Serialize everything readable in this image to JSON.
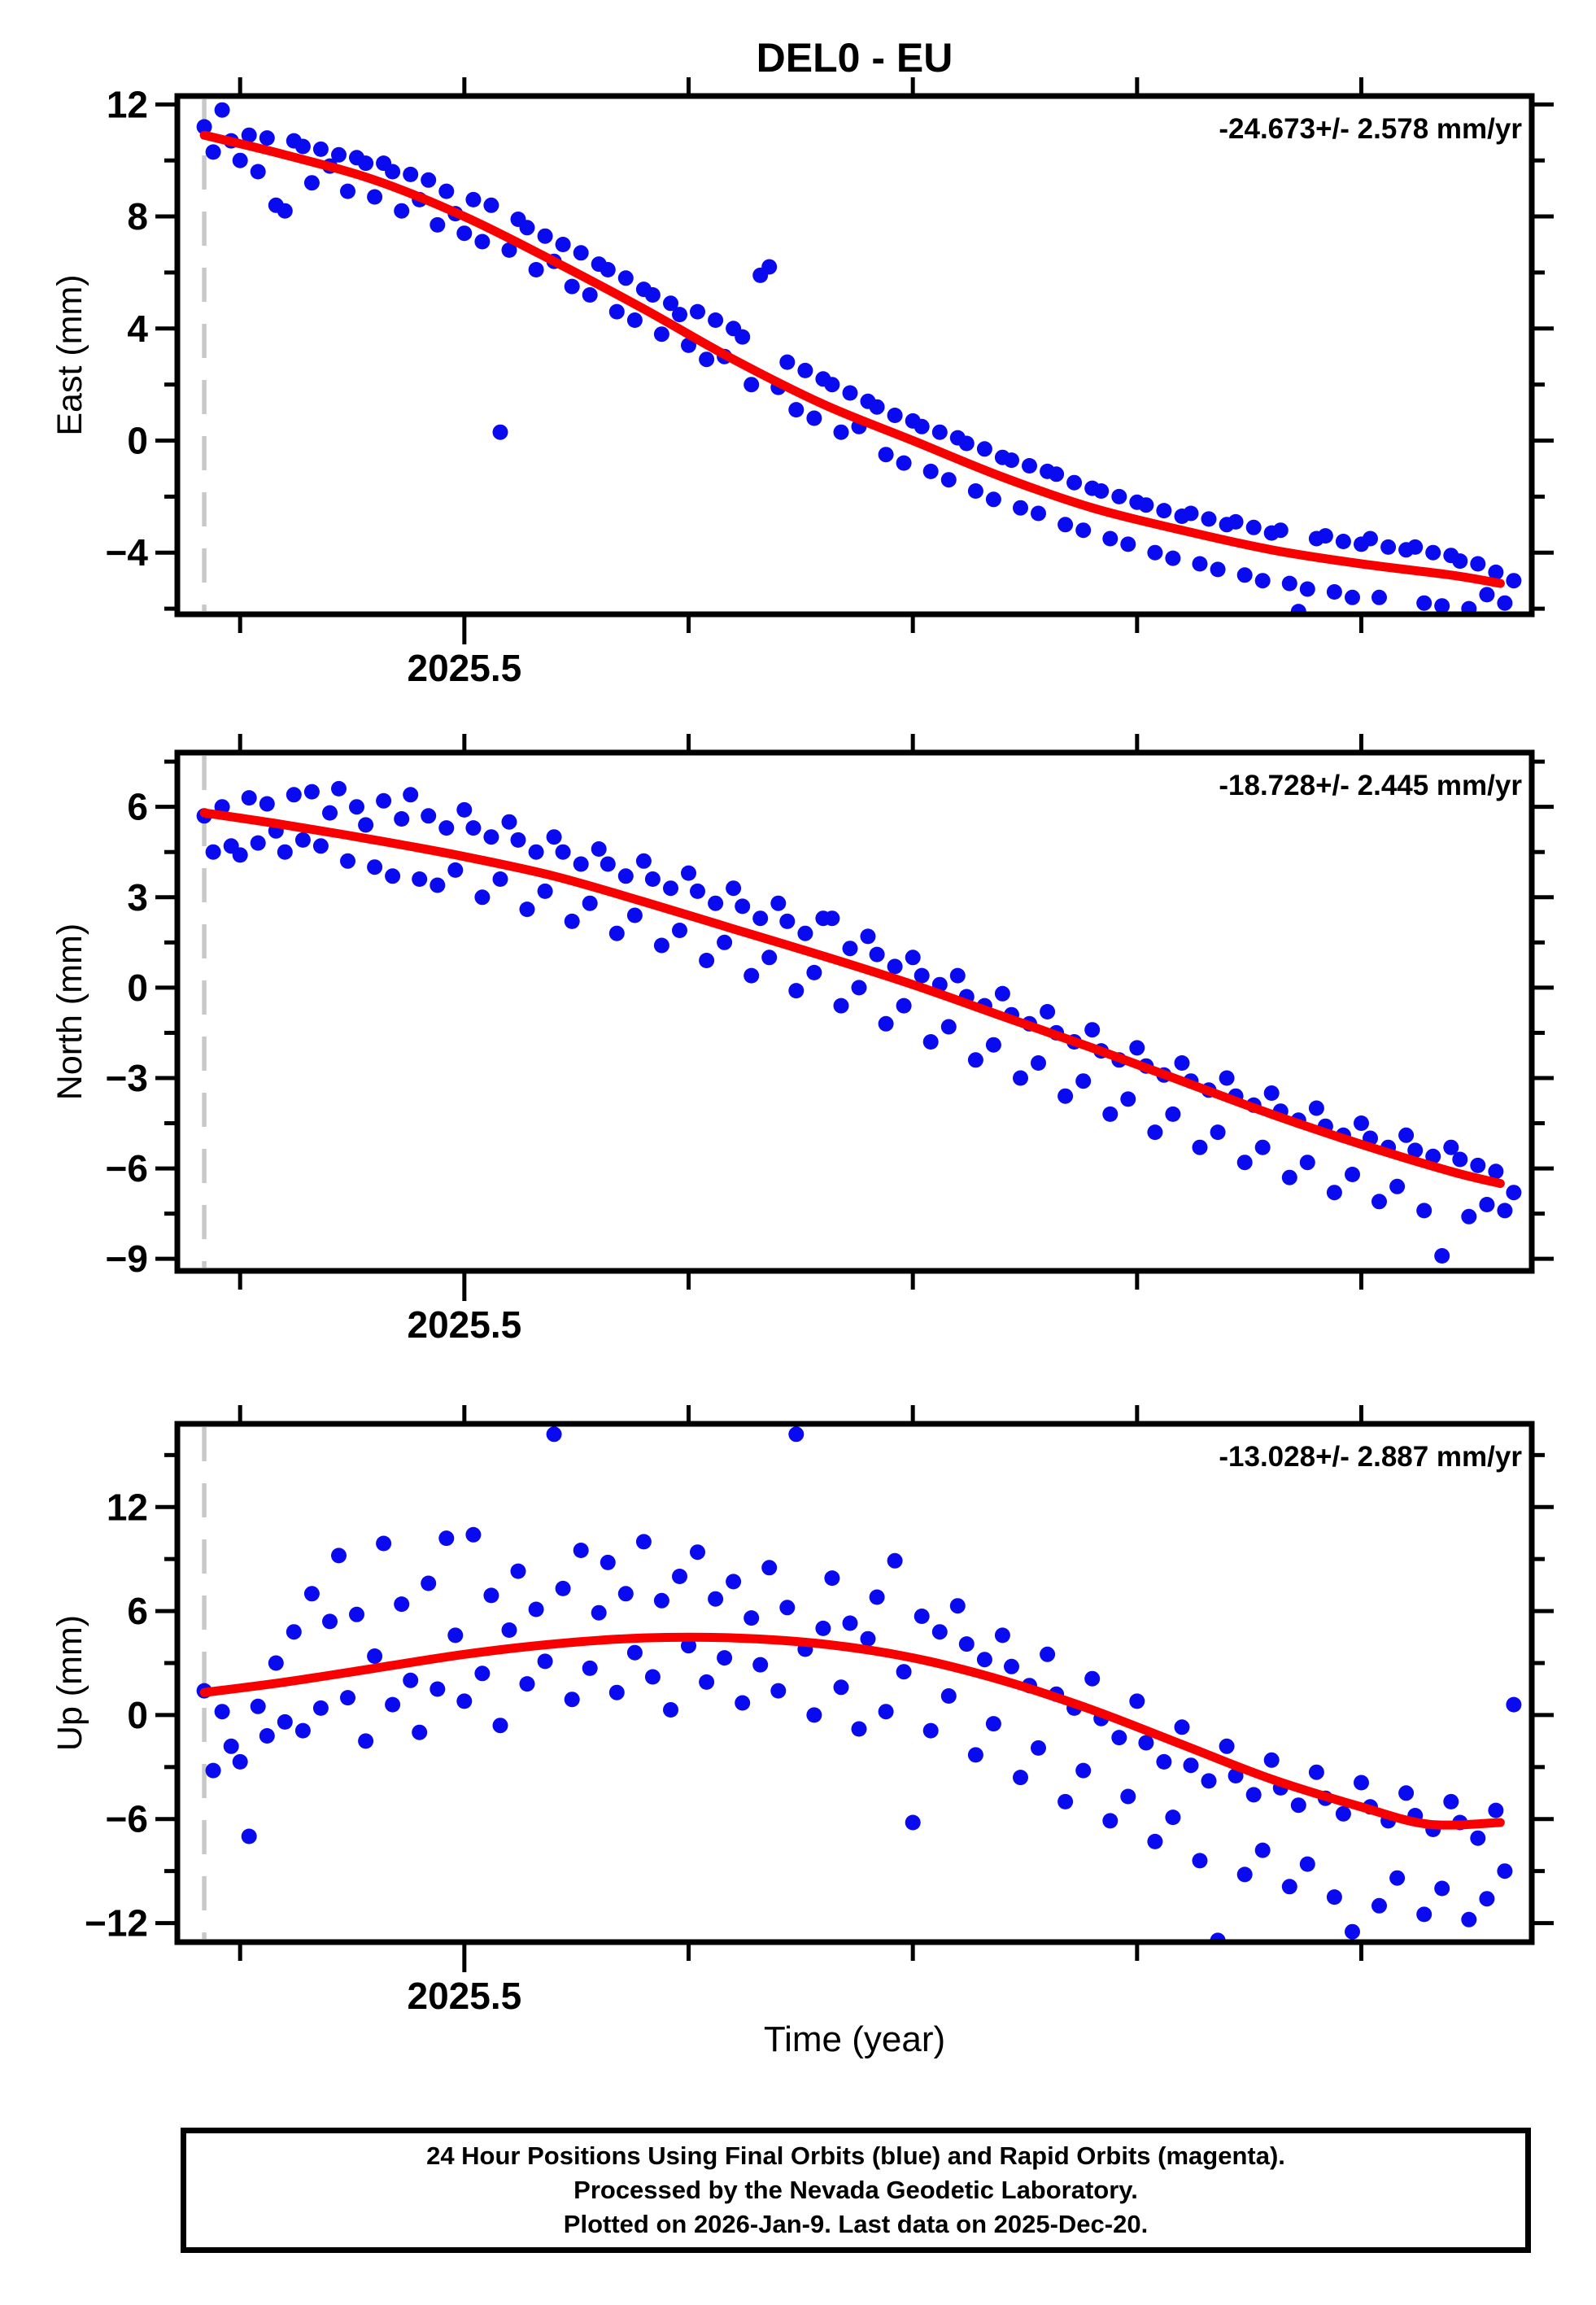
{
  "title": "DEL0 - EU",
  "station": "DEL0",
  "reference_frame": "EU",
  "xlabel": "Time (year)",
  "footer": {
    "lines": [
      "24 Hour Positions Using Final Orbits (blue) and Rapid Orbits (magenta).",
      "Processed by the Nevada Geodetic Laboratory.",
      "Plotted on 2026-Jan-9. Last data on 2025-Dec-20."
    ]
  },
  "colors": {
    "point_blue": "#0a0af0",
    "trend_red": "#f80000",
    "dashed_gray": "#c8c8c8",
    "frame_black": "#000000"
  },
  "chart_data": [
    {
      "type": "scatter",
      "component": "east",
      "ylabel": "East (mm)",
      "rate_label": "-24.673+/- 2.578 mm/yr",
      "ylim": [
        -6.2,
        12.3
      ],
      "yticks": [
        12,
        8,
        4,
        0,
        -4
      ],
      "ytick_labels": [
        "12",
        "8",
        "4",
        "0",
        "−4"
      ],
      "xlim": [
        2025.372,
        2025.976
      ],
      "xticks": [
        2025.4,
        2025.5,
        2025.6,
        2025.7,
        2025.8,
        2025.9
      ],
      "x_labeled_tick": 2025.5,
      "x_tick_label": "2025.5",
      "dashed_line_x": 2025.384,
      "points": {
        "x0": 2025.384,
        "dx": 0.004,
        "y": [
          11.2,
          10.3,
          11.8,
          10.7,
          10.0,
          10.9,
          9.6,
          10.8,
          8.4,
          8.2,
          10.7,
          10.5,
          9.2,
          10.4,
          9.8,
          10.2,
          8.9,
          10.1,
          9.9,
          8.7,
          9.9,
          9.6,
          8.2,
          9.5,
          8.6,
          9.3,
          7.7,
          8.9,
          8.1,
          7.4,
          8.6,
          7.1,
          8.4,
          0.3,
          6.8,
          7.9,
          7.6,
          6.1,
          7.3,
          6.4,
          7.0,
          5.5,
          6.7,
          5.2,
          6.3,
          6.1,
          4.6,
          5.8,
          4.3,
          5.4,
          5.2,
          3.8,
          4.9,
          4.5,
          3.4,
          4.6,
          2.9,
          4.3,
          3.0,
          4.0,
          3.7,
          2.0,
          5.9,
          6.2,
          1.9,
          2.8,
          1.1,
          2.5,
          0.8,
          2.2,
          2.0,
          0.3,
          1.7,
          0.5,
          1.4,
          1.2,
          -0.5,
          0.9,
          -0.8,
          0.7,
          0.5,
          -1.1,
          0.3,
          -1.4,
          0.1,
          -0.1,
          -1.8,
          -0.3,
          -2.1,
          -0.6,
          -0.7,
          -2.4,
          -0.9,
          -2.6,
          -1.1,
          -1.2,
          -3.0,
          -1.5,
          -3.2,
          -1.7,
          -1.8,
          -3.5,
          -2.0,
          -3.7,
          -2.2,
          -2.3,
          -4.0,
          -2.5,
          -4.2,
          -2.7,
          -2.6,
          -4.4,
          -2.8,
          -4.6,
          -3.0,
          -2.9,
          -4.8,
          -3.1,
          -5.0,
          -3.3,
          -3.2,
          -5.1,
          -6.1,
          -5.3,
          -3.5,
          -3.4,
          -5.4,
          -3.6,
          -5.6,
          -3.7,
          -3.5,
          -5.6,
          -3.8,
          -6.4,
          -3.9,
          -3.8,
          -5.8,
          -4.0,
          -5.9,
          -4.1,
          -4.3,
          -6.0,
          -4.4,
          -5.5,
          -4.7,
          -5.8,
          -5.0
        ]
      },
      "trend": {
        "x": [
          2025.384,
          2025.42,
          2025.46,
          2025.5,
          2025.54,
          2025.58,
          2025.62,
          2025.66,
          2025.7,
          2025.74,
          2025.78,
          2025.82,
          2025.86,
          2025.9,
          2025.94,
          2025.962
        ],
        "y": [
          10.9,
          10.2,
          9.3,
          8.0,
          6.4,
          4.7,
          2.9,
          1.3,
          0.0,
          -1.3,
          -2.4,
          -3.2,
          -3.9,
          -4.4,
          -4.8,
          -5.1
        ]
      }
    },
    {
      "type": "scatter",
      "component": "north",
      "ylabel": "North (mm)",
      "rate_label": "-18.728+/- 2.445 mm/yr",
      "ylim": [
        -9.4,
        7.8
      ],
      "yticks": [
        6,
        3,
        0,
        -3,
        -6,
        -9
      ],
      "ytick_labels": [
        "6",
        "3",
        "0",
        "−3",
        "−6",
        "−9"
      ],
      "xlim": [
        2025.372,
        2025.976
      ],
      "xticks": [
        2025.4,
        2025.5,
        2025.6,
        2025.7,
        2025.8,
        2025.9
      ],
      "x_labeled_tick": 2025.5,
      "x_tick_label": "2025.5",
      "dashed_line_x": 2025.384,
      "points": {
        "x0": 2025.384,
        "dx": 0.004,
        "y": [
          5.7,
          4.5,
          6.0,
          4.7,
          4.4,
          6.3,
          4.8,
          6.1,
          5.2,
          4.5,
          6.4,
          4.9,
          6.5,
          4.7,
          5.8,
          6.6,
          4.2,
          6.0,
          5.4,
          4.0,
          6.2,
          3.7,
          5.6,
          6.4,
          3.6,
          5.7,
          3.4,
          5.3,
          3.9,
          5.9,
          5.3,
          3.0,
          5.0,
          3.6,
          5.5,
          4.9,
          2.6,
          4.5,
          3.2,
          5.0,
          4.5,
          2.2,
          4.1,
          2.8,
          4.6,
          4.1,
          1.8,
          3.7,
          2.4,
          4.2,
          3.6,
          1.4,
          3.3,
          1.9,
          3.8,
          3.2,
          0.9,
          2.8,
          1.5,
          3.3,
          2.7,
          0.4,
          2.3,
          1.0,
          2.8,
          2.2,
          -0.1,
          1.8,
          0.5,
          2.3,
          2.3,
          -0.6,
          1.3,
          0.0,
          1.7,
          1.1,
          -1.2,
          0.7,
          -0.6,
          1.0,
          0.4,
          -1.8,
          0.1,
          -1.3,
          0.4,
          -0.3,
          -2.4,
          -0.6,
          -1.9,
          -0.2,
          -0.9,
          -3.0,
          -1.2,
          -2.5,
          -0.8,
          -1.5,
          -3.6,
          -1.8,
          -3.1,
          -1.4,
          -2.1,
          -4.2,
          -2.4,
          -3.7,
          -2.0,
          -2.6,
          -4.8,
          -2.9,
          -4.2,
          -2.5,
          -3.1,
          -5.3,
          -3.4,
          -4.8,
          -3.0,
          -3.6,
          -5.8,
          -3.9,
          -5.3,
          -3.5,
          -4.1,
          -6.3,
          -4.4,
          -5.8,
          -4.0,
          -4.6,
          -6.8,
          -4.9,
          -6.2,
          -4.5,
          -5.0,
          -7.1,
          -5.3,
          -6.6,
          -4.9,
          -5.4,
          -7.4,
          -5.6,
          -8.9,
          -5.3,
          -5.7,
          -7.6,
          -5.9,
          -7.2,
          -6.1,
          -7.4,
          -6.8
        ]
      },
      "trend": {
        "x": [
          2025.384,
          2025.42,
          2025.46,
          2025.5,
          2025.54,
          2025.58,
          2025.62,
          2025.66,
          2025.7,
          2025.74,
          2025.78,
          2025.82,
          2025.86,
          2025.9,
          2025.94,
          2025.962
        ],
        "y": [
          5.8,
          5.4,
          4.9,
          4.35,
          3.7,
          2.85,
          1.95,
          1.05,
          0.1,
          -0.95,
          -2.0,
          -3.1,
          -4.2,
          -5.2,
          -6.1,
          -6.5
        ]
      }
    },
    {
      "type": "scatter",
      "component": "up",
      "ylabel": "Up (mm)",
      "rate_label": "-13.028+/- 2.887 mm/yr",
      "ylim": [
        -13.1,
        16.8
      ],
      "yticks": [
        12,
        6,
        0,
        -6,
        -12
      ],
      "ytick_labels": [
        "12",
        "6",
        "0",
        "−6",
        "−12"
      ],
      "xlim": [
        2025.372,
        2025.976
      ],
      "xticks": [
        2025.4,
        2025.5,
        2025.6,
        2025.7,
        2025.8,
        2025.9
      ],
      "x_labeled_tick": 2025.5,
      "x_tick_label": "2025.5",
      "dashed_line_x": 2025.384,
      "points": {
        "x0": 2025.384,
        "dx": 0.004,
        "y": [
          1.4,
          -3.2,
          0.2,
          -1.8,
          -2.7,
          -7.0,
          0.5,
          -1.2,
          3.0,
          -0.4,
          4.8,
          -0.9,
          7.0,
          0.4,
          5.4,
          9.2,
          1.0,
          5.8,
          -1.5,
          3.4,
          9.9,
          0.6,
          6.4,
          2.0,
          -1.0,
          7.6,
          1.5,
          10.2,
          4.6,
          0.8,
          10.4,
          2.4,
          6.9,
          -0.6,
          4.9,
          8.3,
          1.8,
          6.1,
          3.1,
          16.2,
          7.3,
          0.9,
          9.5,
          2.7,
          5.9,
          8.8,
          1.3,
          7.0,
          3.6,
          10.0,
          2.2,
          6.6,
          0.3,
          8.0,
          4.0,
          9.4,
          1.9,
          6.7,
          3.3,
          7.7,
          0.7,
          5.6,
          2.9,
          8.5,
          1.4,
          6.2,
          16.2,
          3.8,
          0.0,
          5.0,
          7.9,
          1.6,
          5.3,
          -0.8,
          4.4,
          6.8,
          0.2,
          8.9,
          2.5,
          -6.2,
          5.7,
          -0.9,
          4.8,
          1.1,
          6.3,
          4.1,
          -2.3,
          3.2,
          -0.5,
          4.6,
          2.8,
          -3.6,
          1.7,
          -1.9,
          3.5,
          1.2,
          -5.0,
          0.4,
          -3.2,
          2.1,
          -0.2,
          -6.1,
          -1.3,
          -4.7,
          0.8,
          -1.6,
          -7.3,
          -2.7,
          -5.9,
          -0.7,
          -2.9,
          -8.4,
          -3.8,
          -13.0,
          -1.8,
          -3.5,
          -9.2,
          -4.6,
          -7.8,
          -2.6,
          -4.2,
          -9.9,
          -5.2,
          -8.6,
          -3.3,
          -4.8,
          -10.5,
          -5.7,
          -12.5,
          -3.9,
          -5.3,
          -11.0,
          -6.1,
          -9.4,
          -4.5,
          -5.8,
          -11.5,
          -6.6,
          -10.0,
          -5.0,
          -6.2,
          -11.8,
          -7.1,
          -10.6,
          -5.5,
          -9.0,
          0.6
        ]
      },
      "trend": {
        "x": [
          2025.384,
          2025.42,
          2025.46,
          2025.5,
          2025.54,
          2025.58,
          2025.62,
          2025.66,
          2025.7,
          2025.74,
          2025.78,
          2025.82,
          2025.86,
          2025.9,
          2025.93,
          2025.962
        ],
        "y": [
          1.3,
          1.9,
          2.7,
          3.5,
          4.1,
          4.45,
          4.45,
          4.1,
          3.3,
          2.0,
          0.3,
          -1.7,
          -3.7,
          -5.3,
          -6.3,
          -6.2
        ]
      }
    }
  ]
}
